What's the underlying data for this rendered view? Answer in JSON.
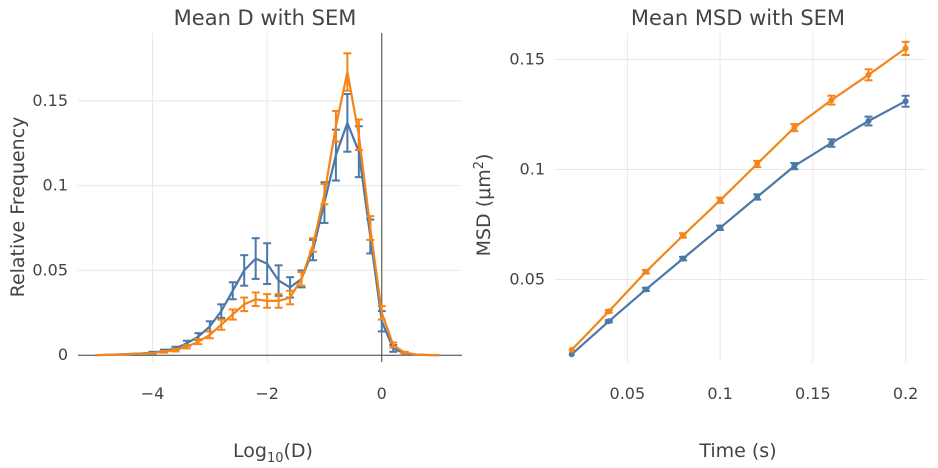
{
  "chart_data": [
    {
      "type": "line",
      "title": "Mean D with SEM",
      "xlabel": "Log",
      "xlabel_sub": "10",
      "xlabel_suffix": "(D)",
      "ylabel": "Relative Frequency",
      "xlim": [
        -5.3,
        1.4
      ],
      "ylim": [
        -0.004,
        0.19
      ],
      "xticks": [
        -4,
        -2,
        0
      ],
      "xtick_labels": [
        "−4",
        "−2",
        "0"
      ],
      "yticks": [
        0,
        0.05,
        0.1,
        0.15
      ],
      "ytick_labels": [
        "0",
        "0.05",
        "0.1",
        "0.15"
      ],
      "grid": true,
      "zeroline_x": true,
      "series": [
        {
          "color": "#4c78a8",
          "x": [
            -5.0,
            -4.8,
            -4.6,
            -4.4,
            -4.2,
            -4.0,
            -3.8,
            -3.6,
            -3.4,
            -3.2,
            -3.0,
            -2.8,
            -2.6,
            -2.4,
            -2.2,
            -2.0,
            -1.8,
            -1.6,
            -1.4,
            -1.2,
            -1.0,
            -0.8,
            -0.6,
            -0.4,
            -0.2,
            0.0,
            0.2,
            0.4,
            0.6,
            0.8,
            1.0
          ],
          "y": [
            0.0,
            0.0002,
            0.0004,
            0.0007,
            0.001,
            0.0015,
            0.0025,
            0.004,
            0.007,
            0.011,
            0.017,
            0.026,
            0.038,
            0.05,
            0.057,
            0.054,
            0.044,
            0.04,
            0.045,
            0.062,
            0.09,
            0.118,
            0.137,
            0.12,
            0.07,
            0.02,
            0.004,
            0.001,
            0.0003,
            0.0001,
            0.0
          ],
          "err": [
            0.0,
            0.0001,
            0.0001,
            0.0002,
            0.0003,
            0.0005,
            0.0008,
            0.001,
            0.0015,
            0.002,
            0.003,
            0.004,
            0.005,
            0.009,
            0.012,
            0.012,
            0.009,
            0.006,
            0.005,
            0.006,
            0.012,
            0.015,
            0.017,
            0.015,
            0.01,
            0.006,
            0.002,
            0.0007,
            0.0002,
            0.0001,
            0.0
          ]
        },
        {
          "color": "#f58518",
          "x": [
            -5.0,
            -4.8,
            -4.6,
            -4.4,
            -4.2,
            -4.0,
            -3.8,
            -3.6,
            -3.4,
            -3.2,
            -3.0,
            -2.8,
            -2.6,
            -2.4,
            -2.2,
            -2.0,
            -1.8,
            -1.6,
            -1.4,
            -1.2,
            -1.0,
            -0.8,
            -0.6,
            -0.4,
            -0.2,
            0.0,
            0.2,
            0.4,
            0.6,
            0.8,
            1.0
          ],
          "y": [
            0.0,
            0.0002,
            0.0004,
            0.0006,
            0.0009,
            0.0013,
            0.002,
            0.003,
            0.005,
            0.008,
            0.012,
            0.018,
            0.024,
            0.03,
            0.033,
            0.032,
            0.032,
            0.034,
            0.045,
            0.065,
            0.095,
            0.135,
            0.167,
            0.13,
            0.075,
            0.025,
            0.006,
            0.0015,
            0.0004,
            0.0001,
            0.0
          ],
          "err": [
            0.0,
            0.0001,
            0.0001,
            0.0001,
            0.0002,
            0.0003,
            0.0005,
            0.0008,
            0.001,
            0.0015,
            0.002,
            0.003,
            0.003,
            0.004,
            0.004,
            0.004,
            0.004,
            0.004,
            0.004,
            0.004,
            0.006,
            0.009,
            0.011,
            0.009,
            0.007,
            0.004,
            0.0015,
            0.0005,
            0.0002,
            0.0001,
            0.0
          ]
        }
      ]
    },
    {
      "type": "line",
      "title": "Mean MSD with SEM",
      "xlabel": "Time (s)",
      "ylabel": "MSD (μm",
      "ylabel_sup": "2",
      "ylabel_suffix": ")",
      "xlim": [
        0.011,
        0.211
      ],
      "ylim": [
        0.0125,
        0.162
      ],
      "xticks": [
        0.05,
        0.1,
        0.15,
        0.2
      ],
      "xtick_labels": [
        "0.05",
        "0.1",
        "0.15",
        "0.2"
      ],
      "yticks": [
        0.05,
        0.1,
        0.15
      ],
      "ytick_labels": [
        "0.05",
        "0.1",
        "0.15"
      ],
      "grid": true,
      "series": [
        {
          "color": "#4c78a8",
          "x": [
            0.02,
            0.04,
            0.06,
            0.08,
            0.1,
            0.12,
            0.14,
            0.16,
            0.18,
            0.2
          ],
          "y": [
            0.016,
            0.031,
            0.0455,
            0.0595,
            0.0735,
            0.0875,
            0.1015,
            0.112,
            0.122,
            0.131
          ],
          "err": [
            0.0003,
            0.0005,
            0.0007,
            0.0008,
            0.001,
            0.0012,
            0.0014,
            0.0017,
            0.002,
            0.0025
          ]
        },
        {
          "color": "#f58518",
          "x": [
            0.02,
            0.04,
            0.06,
            0.08,
            0.1,
            0.12,
            0.14,
            0.16,
            0.18,
            0.2
          ],
          "y": [
            0.018,
            0.0355,
            0.0535,
            0.07,
            0.086,
            0.1025,
            0.119,
            0.1315,
            0.143,
            0.155
          ],
          "err": [
            0.0004,
            0.0006,
            0.0008,
            0.001,
            0.0012,
            0.0014,
            0.0016,
            0.002,
            0.0025,
            0.003
          ]
        }
      ]
    }
  ]
}
